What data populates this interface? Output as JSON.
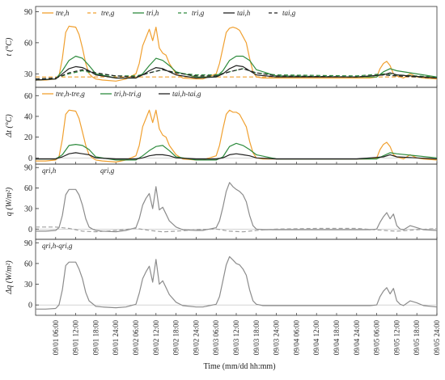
{
  "colors": {
    "orange": "#f0a030",
    "green": "#2e8b3e",
    "black": "#222222",
    "gray_solid": "#8c8c8c",
    "gray_dashed": "#a0a0a0"
  },
  "x_axis": {
    "label": "Time (mm/dd hh:mm)",
    "ticks": [
      "09/01 06:00",
      "09/01 12:00",
      "09/01 18:00",
      "09/01 24:00",
      "09/02 06:00",
      "09/02 12:00",
      "09/02 18:00",
      "09/02 24:00",
      "09/03 06:00",
      "09/03 12:00",
      "09/03 18:00",
      "09/03 24:00",
      "09/04 06:00",
      "09/04 12:00",
      "09/04 18:00",
      "09/04 24:00",
      "09/05 06:00",
      "09/05 12:00",
      "09/05 18:00",
      "09/05 24:00"
    ],
    "range_hours": [
      0,
      120
    ]
  },
  "chart_data": [
    {
      "type": "line",
      "ylabel": "t (°C)",
      "ylim": [
        17,
        95
      ],
      "yticks": [
        30,
        60,
        90
      ],
      "legend": "top-left",
      "series": [
        {
          "name": "tre,h",
          "color": "orange",
          "dash": false,
          "x": [
            0,
            3,
            6,
            7,
            8,
            9,
            10,
            12,
            13,
            14,
            15,
            16,
            17,
            18,
            20,
            24,
            27,
            30,
            31,
            32,
            33,
            34,
            35,
            36,
            37,
            38,
            39,
            40,
            42,
            44,
            48,
            50,
            54,
            55,
            56,
            57,
            58,
            59,
            60,
            61,
            62,
            63,
            64,
            65,
            66,
            68,
            72,
            78,
            84,
            90,
            96,
            100,
            102,
            103,
            104,
            105,
            106,
            107,
            108,
            109,
            110,
            112,
            114,
            116,
            120
          ],
          "y": [
            24,
            24,
            25,
            28,
            45,
            70,
            76,
            75,
            68,
            55,
            40,
            30,
            27,
            25,
            24,
            23,
            25,
            30,
            40,
            57,
            65,
            73,
            62,
            75,
            55,
            50,
            48,
            40,
            30,
            26,
            25,
            25,
            30,
            40,
            55,
            70,
            74,
            75,
            74,
            72,
            66,
            60,
            45,
            32,
            27,
            26,
            26,
            26,
            26,
            26,
            26,
            26,
            27,
            35,
            40,
            42,
            38,
            30,
            28,
            27,
            26,
            30,
            27,
            26,
            25
          ]
        },
        {
          "name": "tre,g",
          "color": "orange",
          "dash": true,
          "x": [
            0,
            24,
            48,
            72,
            96,
            120
          ],
          "y": [
            27,
            27,
            27,
            27,
            27,
            27
          ]
        },
        {
          "name": "tri,h",
          "color": "green",
          "dash": false,
          "x": [
            0,
            6,
            8,
            10,
            12,
            14,
            16,
            18,
            24,
            30,
            32,
            34,
            36,
            38,
            40,
            42,
            48,
            54,
            56,
            58,
            60,
            62,
            64,
            66,
            72,
            96,
            102,
            104,
            106,
            108,
            120
          ],
          "y": [
            24,
            25,
            33,
            43,
            47,
            45,
            38,
            30,
            26,
            26,
            30,
            38,
            45,
            43,
            38,
            32,
            27,
            27,
            33,
            43,
            47,
            47,
            43,
            34,
            28,
            27,
            27,
            32,
            35,
            33,
            27
          ]
        },
        {
          "name": "tri,g",
          "color": "green",
          "dash": true,
          "x": [
            0,
            6,
            10,
            14,
            18,
            24,
            30,
            34,
            38,
            42,
            48,
            54,
            58,
            62,
            66,
            72,
            96,
            104,
            108,
            120
          ],
          "y": [
            25,
            26,
            30,
            33,
            30,
            28,
            28,
            31,
            34,
            31,
            29,
            29,
            32,
            35,
            31,
            29,
            28,
            30,
            29,
            27
          ]
        },
        {
          "name": "tai,h",
          "color": "black",
          "dash": false,
          "x": [
            0,
            6,
            8,
            10,
            12,
            14,
            16,
            18,
            24,
            30,
            32,
            34,
            36,
            38,
            40,
            42,
            48,
            54,
            56,
            58,
            60,
            62,
            64,
            66,
            72,
            96,
            104,
            106,
            108,
            120
          ],
          "y": [
            24,
            25,
            30,
            35,
            37,
            36,
            33,
            29,
            26,
            26,
            29,
            33,
            36,
            35,
            32,
            29,
            26,
            27,
            30,
            35,
            38,
            37,
            33,
            29,
            27,
            27,
            29,
            31,
            29,
            26
          ]
        },
        {
          "name": "tai,g",
          "color": "black",
          "dash": true,
          "x": [
            0,
            6,
            10,
            14,
            18,
            24,
            30,
            34,
            38,
            42,
            48,
            54,
            58,
            62,
            66,
            72,
            96,
            104,
            108,
            120
          ],
          "y": [
            25,
            26,
            31,
            34,
            31,
            28,
            27,
            31,
            34,
            31,
            28,
            28,
            32,
            35,
            31,
            28,
            27,
            29,
            28,
            26
          ]
        }
      ]
    },
    {
      "type": "line",
      "ylabel": "Δt (°C)",
      "ylim": [
        -6,
        68
      ],
      "yticks": [
        0,
        20,
        40,
        60
      ],
      "legend": "top-left",
      "series": [
        {
          "name": "tre,h-tre,g",
          "color": "orange",
          "dash": false,
          "x": [
            0,
            3,
            6,
            7,
            8,
            9,
            10,
            12,
            13,
            14,
            15,
            16,
            17,
            18,
            20,
            24,
            27,
            30,
            31,
            32,
            33,
            34,
            35,
            36,
            37,
            38,
            39,
            40,
            42,
            44,
            48,
            50,
            54,
            55,
            56,
            57,
            58,
            59,
            60,
            61,
            62,
            63,
            64,
            65,
            66,
            68,
            72,
            78,
            84,
            90,
            96,
            100,
            102,
            103,
            104,
            105,
            106,
            107,
            108,
            109,
            110,
            112,
            114,
            116,
            120
          ],
          "y": [
            -3,
            -3,
            -2,
            1,
            18,
            42,
            46,
            45,
            38,
            25,
            12,
            3,
            0,
            -2,
            -3,
            -4,
            -2,
            2,
            12,
            30,
            38,
            46,
            34,
            46,
            28,
            22,
            20,
            12,
            3,
            -1,
            -2,
            -2,
            2,
            12,
            28,
            42,
            46,
            44,
            44,
            42,
            36,
            30,
            16,
            5,
            0,
            -1,
            -1,
            -1,
            -1,
            -1,
            -1,
            -1,
            0,
            8,
            13,
            15,
            11,
            3,
            1,
            0,
            -1,
            3,
            0,
            -1,
            -2
          ]
        },
        {
          "name": "tri,h-tri,g",
          "color": "green",
          "dash": false,
          "x": [
            0,
            6,
            8,
            10,
            12,
            14,
            16,
            18,
            24,
            30,
            32,
            34,
            36,
            38,
            40,
            42,
            48,
            54,
            56,
            58,
            60,
            62,
            64,
            66,
            72,
            96,
            102,
            104,
            106,
            108,
            120
          ],
          "y": [
            -1,
            -1,
            3,
            12,
            13,
            12,
            8,
            1,
            -2,
            -2,
            2,
            7,
            11,
            12,
            7,
            1,
            -2,
            -2,
            1,
            11,
            14,
            12,
            8,
            3,
            -1,
            -1,
            -1,
            2,
            5,
            4,
            0
          ]
        },
        {
          "name": "tai,h-tai,g",
          "color": "black",
          "dash": false,
          "x": [
            0,
            6,
            8,
            10,
            12,
            14,
            16,
            18,
            24,
            30,
            32,
            34,
            36,
            38,
            40,
            42,
            48,
            54,
            56,
            58,
            60,
            62,
            64,
            66,
            72,
            96,
            104,
            106,
            108,
            120
          ],
          "y": [
            -1,
            -1,
            1,
            4,
            5,
            4,
            3,
            0,
            -1,
            -1,
            0,
            2,
            3,
            3,
            2,
            0,
            -1,
            -1,
            0,
            3,
            4,
            3,
            2,
            0,
            -1,
            -1,
            1,
            3,
            1,
            -1
          ]
        }
      ]
    },
    {
      "type": "line",
      "ylabel": "q (W/m²)",
      "ylim": [
        -15,
        95
      ],
      "yticks": [
        0,
        30,
        60,
        90
      ],
      "legend": "top-left",
      "series": [
        {
          "name": "qri,h",
          "color": "gray_solid",
          "dash": false,
          "x": [
            0,
            3,
            6,
            7,
            8,
            9,
            10,
            12,
            13,
            14,
            15,
            16,
            17,
            18,
            20,
            24,
            27,
            30,
            31,
            32,
            33,
            34,
            35,
            36,
            37,
            38,
            39,
            40,
            42,
            44,
            48,
            50,
            54,
            55,
            56,
            57,
            58,
            59,
            60,
            61,
            62,
            63,
            64,
            65,
            66,
            68,
            72,
            78,
            84,
            90,
            96,
            100,
            102,
            103,
            104,
            105,
            106,
            107,
            108,
            109,
            110,
            112,
            114,
            116,
            120
          ],
          "y": [
            -3,
            -3,
            -2,
            2,
            20,
            50,
            58,
            58,
            50,
            35,
            15,
            3,
            0,
            -2,
            -3,
            -4,
            -2,
            2,
            15,
            35,
            45,
            52,
            30,
            62,
            28,
            32,
            22,
            12,
            3,
            -1,
            -2,
            -2,
            2,
            12,
            32,
            55,
            68,
            62,
            58,
            55,
            50,
            40,
            20,
            5,
            0,
            -1,
            -1,
            -1,
            -1,
            -1,
            -1,
            -1,
            0,
            10,
            18,
            24,
            15,
            22,
            5,
            0,
            -1,
            5,
            2,
            -1,
            -2
          ]
        },
        {
          "name": "qri,g",
          "color": "gray_dashed",
          "dash": true,
          "x": [
            0,
            6,
            10,
            14,
            18,
            24,
            30,
            34,
            38,
            42,
            48,
            54,
            58,
            62,
            66,
            72,
            84,
            96,
            104,
            108,
            120
          ],
          "y": [
            3,
            3,
            1,
            -3,
            -4,
            -2,
            1,
            -2,
            -4,
            -3,
            -1,
            0,
            -3,
            -4,
            -2,
            0,
            1,
            1,
            -2,
            -3,
            1
          ]
        }
      ]
    },
    {
      "type": "line",
      "ylabel": "Δq (W/m²)",
      "ylim": [
        -15,
        95
      ],
      "yticks": [
        0,
        30,
        60,
        90
      ],
      "legend": "top-left",
      "series": [
        {
          "name": "qri,h-qri,g",
          "color": "gray_solid",
          "dash": false,
          "x": [
            0,
            3,
            6,
            7,
            8,
            9,
            10,
            12,
            13,
            14,
            15,
            16,
            17,
            18,
            20,
            24,
            27,
            30,
            31,
            32,
            33,
            34,
            35,
            36,
            37,
            38,
            39,
            40,
            42,
            44,
            48,
            50,
            54,
            55,
            56,
            57,
            58,
            59,
            60,
            61,
            62,
            63,
            64,
            65,
            66,
            68,
            72,
            78,
            84,
            90,
            96,
            100,
            102,
            103,
            104,
            105,
            106,
            107,
            108,
            109,
            110,
            112,
            114,
            116,
            120
          ],
          "y": [
            -6,
            -6,
            -5,
            0,
            22,
            57,
            62,
            62,
            52,
            38,
            18,
            6,
            2,
            -2,
            -3,
            -4,
            -3,
            1,
            17,
            38,
            48,
            56,
            33,
            66,
            30,
            35,
            25,
            15,
            4,
            -1,
            -3,
            -3,
            1,
            12,
            35,
            58,
            70,
            65,
            60,
            58,
            52,
            43,
            22,
            6,
            1,
            -1,
            -1,
            -1,
            -1,
            -1,
            -1,
            -1,
            0,
            12,
            20,
            25,
            16,
            24,
            6,
            1,
            -1,
            6,
            3,
            -1,
            -3
          ]
        }
      ]
    }
  ]
}
